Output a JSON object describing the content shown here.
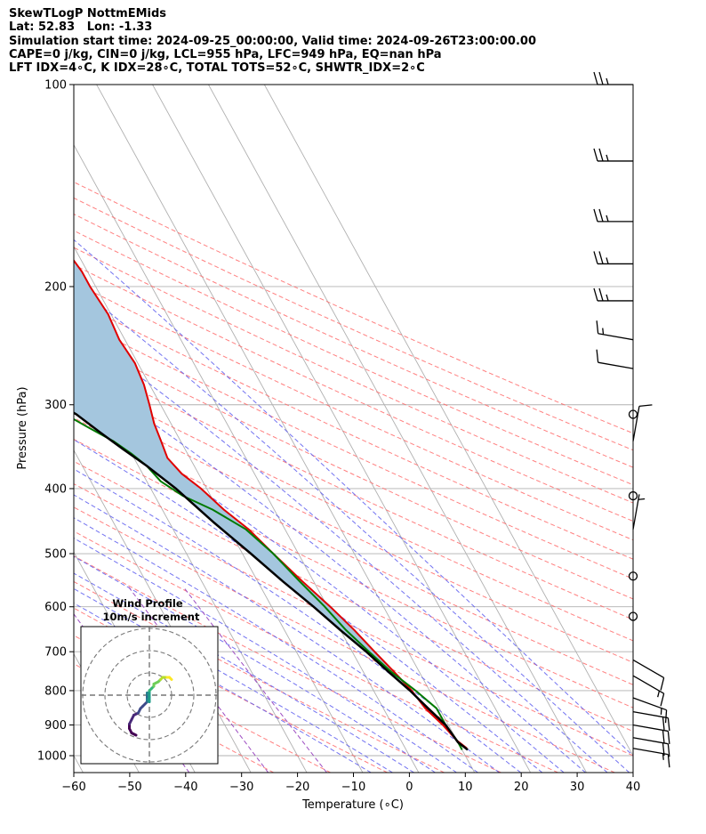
{
  "header": {
    "line1": "SkewTLogP NottmEMids",
    "line2": "Lat: 52.83   Lon: -1.33",
    "line3": "Simulation start time: 2024-09-25_00:00:00, Valid time: 2024-09-26T23:00:00.00",
    "line4": "CAPE=0 j/kg, CIN=0 j/kg, LCL=955 hPa, LFC=949 hPa, EQ=nan hPa",
    "line5": "LFT IDX=4∘C, K IDX=28∘C, TOTAL TOTS=52∘C, SHWTR_IDX=2∘C"
  },
  "chart_data": {
    "type": "line",
    "title": "SkewTLogP NottmEMids",
    "xlabel": "Temperature (∘C)",
    "ylabel": "Pressure (hPa)",
    "xlim": [
      -60,
      40
    ],
    "ylim": [
      1050,
      100
    ],
    "y_scale": "log",
    "x_ticks": [
      -60,
      -50,
      -40,
      -30,
      -20,
      -10,
      0,
      10,
      20,
      30,
      40
    ],
    "x_tick_labels": [
      "−60",
      "−50",
      "−40",
      "−30",
      "−20",
      "−10",
      "0",
      "10",
      "20",
      "30",
      "40"
    ],
    "y_ticks": [
      1000,
      900,
      800,
      700,
      600,
      500,
      400,
      300,
      200,
      100
    ],
    "y_tick_labels": [
      "1000",
      "900",
      "800",
      "700",
      "600",
      "500",
      "400",
      "300",
      "200",
      "100"
    ],
    "grid": true,
    "colors": {
      "temperature": "#e00000",
      "dewpoint": "#007a00",
      "parcel": "#000000",
      "fill": "#a4c6de",
      "dry_adiabats": "#ff6a6a",
      "moist_adiabats": "#5a5aee",
      "mixing_ratio": "#9d4dc2",
      "isotherms": "#b0b0b0",
      "isobars": "#b0b0b0",
      "barbs": "#000000"
    },
    "series": [
      {
        "key": "temperature",
        "points": [
          [
            11,
            975
          ],
          [
            10,
            950
          ],
          [
            9,
            900
          ],
          [
            7.5,
            850
          ],
          [
            6.8,
            800
          ],
          [
            5.5,
            750
          ],
          [
            4,
            700
          ],
          [
            2.5,
            650
          ],
          [
            0.5,
            600
          ],
          [
            -2,
            550
          ],
          [
            -4.5,
            500
          ],
          [
            -6.5,
            460
          ],
          [
            -9,
            430
          ],
          [
            -11,
            400
          ],
          [
            -13,
            380
          ],
          [
            -14,
            360
          ],
          [
            -13.5,
            340
          ],
          [
            -13,
            320
          ],
          [
            -12,
            300
          ],
          [
            -11,
            280
          ],
          [
            -10.5,
            260
          ],
          [
            -11,
            240
          ],
          [
            -10.5,
            220
          ],
          [
            -11,
            200
          ],
          [
            -11,
            190
          ],
          [
            -11.5,
            180
          ],
          [
            -12,
            170
          ],
          [
            -12.5,
            160
          ],
          [
            -13,
            150
          ],
          [
            -13,
            140
          ],
          [
            -13,
            130
          ],
          [
            -13,
            120
          ],
          [
            -13,
            110
          ],
          [
            -13,
            100
          ]
        ]
      },
      {
        "key": "dewpoint",
        "points": [
          [
            10,
            980
          ],
          [
            10,
            950
          ],
          [
            9.5,
            900
          ],
          [
            9.5,
            850
          ],
          [
            7.5,
            800
          ],
          [
            5,
            750
          ],
          [
            3,
            700
          ],
          [
            1,
            650
          ],
          [
            -0.5,
            600
          ],
          [
            -2.5,
            550
          ],
          [
            -4.5,
            500
          ],
          [
            -7,
            460
          ],
          [
            -11,
            430
          ],
          [
            -15,
            410
          ],
          [
            -17.5,
            390
          ],
          [
            -18.5,
            370
          ],
          [
            -20,
            355
          ],
          [
            -22,
            340
          ],
          [
            -25,
            325
          ],
          [
            -28,
            310
          ],
          [
            -30,
            300
          ],
          [
            -31,
            290
          ],
          [
            -30,
            275
          ],
          [
            -31,
            260
          ],
          [
            -33,
            240
          ],
          [
            -36,
            220
          ],
          [
            -40,
            200
          ],
          [
            -42.5,
            190
          ],
          [
            -43.5,
            180
          ],
          [
            -44,
            170
          ],
          [
            -43.5,
            160
          ],
          [
            -43,
            150
          ],
          [
            -43,
            140
          ],
          [
            -43,
            130
          ],
          [
            -43.5,
            120
          ],
          [
            -44,
            110
          ],
          [
            -44.5,
            100
          ]
        ]
      },
      {
        "key": "parcel",
        "points": [
          [
            11,
            980
          ],
          [
            10,
            955
          ],
          [
            9.5,
            900
          ],
          [
            8,
            850
          ],
          [
            6.5,
            800
          ],
          [
            4.5,
            750
          ],
          [
            2.5,
            700
          ],
          [
            0,
            650
          ],
          [
            -2.5,
            600
          ],
          [
            -5.5,
            550
          ],
          [
            -8.5,
            500
          ],
          [
            -12,
            450
          ],
          [
            -15.5,
            400
          ],
          [
            -18.5,
            370
          ],
          [
            -21,
            350
          ],
          [
            -23.5,
            330
          ],
          [
            -26,
            310
          ],
          [
            -28,
            300
          ],
          [
            -30,
            290
          ],
          [
            -32,
            280
          ],
          [
            -34.5,
            270
          ],
          [
            -37,
            260
          ],
          [
            -39.5,
            250
          ],
          [
            -42,
            240
          ],
          [
            -45,
            230
          ],
          [
            -48,
            220
          ],
          [
            -51,
            210
          ],
          [
            -54,
            200
          ],
          [
            -57,
            190
          ],
          [
            -60,
            180
          ],
          [
            -63,
            170
          ],
          [
            -66,
            160
          ],
          [
            -69,
            150
          ],
          [
            -72,
            140
          ],
          [
            -75,
            130
          ],
          [
            -78,
            120
          ],
          [
            -81,
            110
          ],
          [
            -84,
            100
          ]
        ]
      }
    ],
    "wind_barbs": [
      {
        "p": 100,
        "speed": 25,
        "dir": 270
      },
      {
        "p": 130,
        "speed": 25,
        "dir": 270
      },
      {
        "p": 160,
        "speed": 25,
        "dir": 270
      },
      {
        "p": 185,
        "speed": 25,
        "dir": 270
      },
      {
        "p": 210,
        "speed": 25,
        "dir": 270
      },
      {
        "p": 240,
        "speed": 15,
        "dir": 280
      },
      {
        "p": 265,
        "speed": 10,
        "dir": 280
      },
      {
        "p": 310,
        "speed": 0
      },
      {
        "p": 340,
        "speed": 10,
        "dir": 10
      },
      {
        "p": 410,
        "speed": 0
      },
      {
        "p": 460,
        "speed": 5,
        "dir": 10
      },
      {
        "p": 540,
        "speed": 0
      },
      {
        "p": 620,
        "speed": 0
      },
      {
        "p": 720,
        "speed": 10,
        "dir": 120
      },
      {
        "p": 760,
        "speed": 15,
        "dir": 120
      },
      {
        "p": 820,
        "speed": 15,
        "dir": 110
      },
      {
        "p": 860,
        "speed": 20,
        "dir": 100
      },
      {
        "p": 900,
        "speed": 20,
        "dir": 100
      },
      {
        "p": 940,
        "speed": 20,
        "dir": 100
      },
      {
        "p": 975,
        "speed": 15,
        "dir": 100
      }
    ],
    "hodograph": {
      "title": "Wind Profile",
      "subtitle": "10m/s increment",
      "rings_ms": [
        10,
        20,
        30
      ],
      "colormap": "viridis",
      "points": [
        [
          -6,
          -18
        ],
        [
          -8,
          -17
        ],
        [
          -9,
          -15
        ],
        [
          -9,
          -13
        ],
        [
          -8,
          -11
        ],
        [
          -7,
          -9
        ],
        [
          -5,
          -8
        ],
        [
          -4,
          -6
        ],
        [
          -3,
          -5
        ],
        [
          -1,
          -3
        ],
        [
          -1,
          -1
        ],
        [
          -1,
          1
        ],
        [
          0,
          -1
        ],
        [
          -1,
          -2
        ],
        [
          0,
          -3
        ],
        [
          0,
          -2
        ],
        [
          0,
          0
        ],
        [
          0,
          2
        ],
        [
          1,
          3
        ],
        [
          2,
          4
        ],
        [
          2,
          5
        ],
        [
          4,
          6
        ],
        [
          5,
          7
        ],
        [
          6,
          8
        ],
        [
          7,
          8
        ],
        [
          8,
          8
        ],
        [
          9,
          8
        ],
        [
          10,
          7
        ]
      ]
    }
  }
}
